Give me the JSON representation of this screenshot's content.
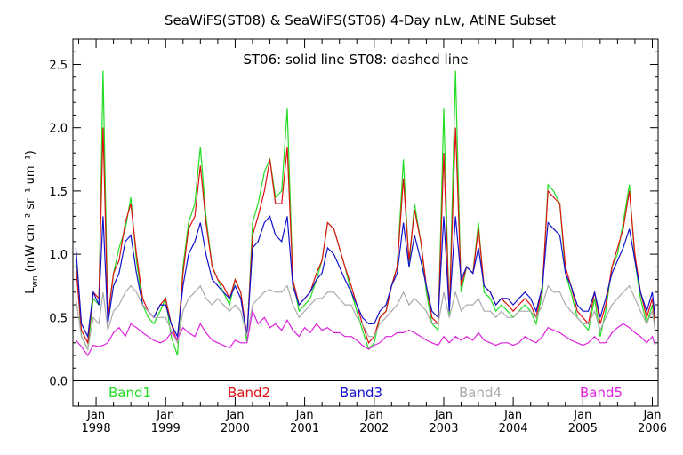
{
  "chart_data": {
    "type": "line",
    "title": "SeaWiFS(ST08) & SeaWiFS(ST06) 4-Day nLw, AtlNE Subset",
    "annotation": "ST06: solid line    ST08: dashed line",
    "xlabel": "",
    "ylabel_main": "L",
    "ylabel_sub": "wn",
    "ylabel_units": "(mW cm⁻² sr⁻¹ um⁻¹)",
    "x_range": [
      "1997-09-01",
      "2006-02-01"
    ],
    "ylim": [
      -0.2,
      2.7
    ],
    "y_ticks": [
      0.0,
      0.5,
      1.0,
      1.5,
      2.0,
      2.5
    ],
    "y_tick_labels": [
      "0.0",
      "0.5",
      "1.0",
      "1.5",
      "2.0",
      "2.5"
    ],
    "x_ticks": [
      {
        "month": "Jan",
        "year": "1998"
      },
      {
        "month": "Jan",
        "year": "1999"
      },
      {
        "month": "Jan",
        "year": "2000"
      },
      {
        "month": "Jan",
        "year": "2001"
      },
      {
        "month": "Jan",
        "year": "2002"
      },
      {
        "month": "Jan",
        "year": "2003"
      },
      {
        "month": "Jan",
        "year": "2004"
      },
      {
        "month": "Jan",
        "year": "2005"
      },
      {
        "month": "Jan",
        "year": "2006"
      }
    ],
    "zero_line": true,
    "x": [
      1997.71,
      1997.79,
      1997.88,
      1997.96,
      1998.04,
      1998.1,
      1998.17,
      1998.25,
      1998.33,
      1998.42,
      1998.5,
      1998.58,
      1998.67,
      1998.75,
      1998.83,
      1998.92,
      1999.0,
      1999.08,
      1999.17,
      1999.25,
      1999.33,
      1999.42,
      1999.5,
      1999.58,
      1999.67,
      1999.75,
      1999.83,
      1999.92,
      2000.0,
      2000.08,
      2000.17,
      2000.25,
      2000.33,
      2000.42,
      2000.5,
      2000.58,
      2000.67,
      2000.75,
      2000.83,
      2000.92,
      2001.0,
      2001.08,
      2001.17,
      2001.25,
      2001.33,
      2001.42,
      2001.5,
      2001.58,
      2001.67,
      2001.75,
      2001.83,
      2001.92,
      2002.0,
      2002.08,
      2002.17,
      2002.25,
      2002.33,
      2002.42,
      2002.5,
      2002.58,
      2002.67,
      2002.75,
      2002.83,
      2002.92,
      2003.0,
      2003.08,
      2003.17,
      2003.25,
      2003.33,
      2003.42,
      2003.5,
      2003.58,
      2003.67,
      2003.75,
      2003.83,
      2003.92,
      2004.0,
      2004.08,
      2004.17,
      2004.25,
      2004.33,
      2004.42,
      2004.5,
      2004.58,
      2004.67,
      2004.75,
      2004.83,
      2004.92,
      2005.0,
      2005.08,
      2005.17,
      2005.25,
      2005.33,
      2005.42,
      2005.5,
      2005.58,
      2005.67,
      2005.75,
      2005.83,
      2005.92,
      2006.0,
      2006.04
    ],
    "series": [
      {
        "name": "Band1",
        "color": "#22dd22",
        "style": "solid",
        "values": [
          0.95,
          0.35,
          0.25,
          0.65,
          0.6,
          2.45,
          0.5,
          0.85,
          1.05,
          1.2,
          1.45,
          0.95,
          0.6,
          0.5,
          0.45,
          0.55,
          0.65,
          0.35,
          0.2,
          0.9,
          1.25,
          1.4,
          1.85,
          1.3,
          0.9,
          0.8,
          0.7,
          0.6,
          0.8,
          0.7,
          0.3,
          1.25,
          1.4,
          1.65,
          1.75,
          1.45,
          1.5,
          2.15,
          0.8,
          0.55,
          0.6,
          0.65,
          0.8,
          0.95,
          1.25,
          1.2,
          1.05,
          0.9,
          0.7,
          0.55,
          0.4,
          0.25,
          0.3,
          0.5,
          0.55,
          0.75,
          0.9,
          1.75,
          0.9,
          1.4,
          1.1,
          0.7,
          0.45,
          0.4,
          2.15,
          0.5,
          2.45,
          0.7,
          0.9,
          0.85,
          1.25,
          0.7,
          0.65,
          0.55,
          0.6,
          0.55,
          0.5,
          0.55,
          0.6,
          0.55,
          0.45,
          0.7,
          1.55,
          1.5,
          1.4,
          0.85,
          0.7,
          0.5,
          0.45,
          0.4,
          0.65,
          0.35,
          0.55,
          0.9,
          1.0,
          1.25,
          1.55,
          0.95,
          0.65,
          0.45,
          0.6,
          0.4
        ]
      },
      {
        "name": "Band2",
        "color": "#dd1111",
        "style": "solid",
        "values": [
          0.9,
          0.4,
          0.3,
          0.7,
          0.65,
          2.0,
          0.5,
          0.85,
          0.95,
          1.25,
          1.4,
          1.0,
          0.65,
          0.55,
          0.5,
          0.6,
          0.65,
          0.45,
          0.3,
          0.85,
          1.2,
          1.3,
          1.7,
          1.25,
          0.9,
          0.8,
          0.75,
          0.65,
          0.8,
          0.7,
          0.35,
          1.15,
          1.3,
          1.5,
          1.75,
          1.4,
          1.4,
          1.85,
          0.8,
          0.6,
          0.65,
          0.7,
          0.85,
          0.95,
          1.25,
          1.2,
          1.05,
          0.9,
          0.75,
          0.6,
          0.45,
          0.3,
          0.35,
          0.5,
          0.55,
          0.75,
          0.9,
          1.6,
          0.95,
          1.35,
          1.1,
          0.75,
          0.5,
          0.45,
          1.8,
          0.55,
          2.0,
          0.75,
          0.9,
          0.85,
          1.2,
          0.75,
          0.7,
          0.6,
          0.65,
          0.6,
          0.55,
          0.6,
          0.65,
          0.6,
          0.5,
          0.75,
          1.5,
          1.45,
          1.4,
          0.9,
          0.75,
          0.55,
          0.5,
          0.45,
          0.7,
          0.45,
          0.6,
          0.9,
          1.05,
          1.2,
          1.5,
          1.0,
          0.7,
          0.5,
          0.65,
          0.45
        ]
      },
      {
        "name": "Band3",
        "color": "#1111cc",
        "style": "solid",
        "values": [
          1.05,
          0.45,
          0.35,
          0.7,
          0.6,
          1.3,
          0.45,
          0.75,
          0.85,
          1.1,
          1.15,
          0.85,
          0.6,
          0.55,
          0.5,
          0.6,
          0.6,
          0.45,
          0.35,
          0.75,
          1.0,
          1.1,
          1.25,
          1.0,
          0.8,
          0.75,
          0.7,
          0.65,
          0.75,
          0.65,
          0.35,
          1.05,
          1.1,
          1.25,
          1.3,
          1.15,
          1.1,
          1.3,
          0.75,
          0.6,
          0.65,
          0.7,
          0.8,
          0.85,
          1.05,
          1.0,
          0.9,
          0.8,
          0.7,
          0.6,
          0.5,
          0.45,
          0.45,
          0.55,
          0.6,
          0.75,
          0.85,
          1.25,
          0.9,
          1.15,
          0.95,
          0.75,
          0.55,
          0.5,
          1.3,
          0.55,
          1.3,
          0.8,
          0.9,
          0.85,
          1.05,
          0.75,
          0.7,
          0.6,
          0.65,
          0.65,
          0.6,
          0.65,
          0.7,
          0.65,
          0.55,
          0.75,
          1.25,
          1.2,
          1.15,
          0.85,
          0.75,
          0.6,
          0.55,
          0.55,
          0.7,
          0.5,
          0.65,
          0.85,
          0.95,
          1.05,
          1.2,
          0.95,
          0.7,
          0.55,
          0.7,
          0.5
        ]
      },
      {
        "name": "Band4",
        "color": "#aaaaaa",
        "style": "solid",
        "values": [
          0.65,
          0.35,
          0.25,
          0.5,
          0.45,
          0.7,
          0.4,
          0.55,
          0.6,
          0.7,
          0.75,
          0.7,
          0.6,
          0.55,
          0.5,
          0.5,
          0.5,
          0.4,
          0.3,
          0.55,
          0.65,
          0.7,
          0.75,
          0.65,
          0.6,
          0.65,
          0.6,
          0.55,
          0.6,
          0.55,
          0.35,
          0.6,
          0.65,
          0.7,
          0.72,
          0.7,
          0.7,
          0.75,
          0.6,
          0.5,
          0.55,
          0.6,
          0.65,
          0.65,
          0.7,
          0.7,
          0.65,
          0.6,
          0.6,
          0.5,
          0.45,
          0.35,
          0.35,
          0.45,
          0.5,
          0.55,
          0.6,
          0.7,
          0.6,
          0.65,
          0.6,
          0.55,
          0.45,
          0.45,
          0.7,
          0.5,
          0.7,
          0.55,
          0.6,
          0.6,
          0.65,
          0.55,
          0.55,
          0.5,
          0.55,
          0.5,
          0.5,
          0.55,
          0.55,
          0.55,
          0.5,
          0.6,
          0.75,
          0.7,
          0.7,
          0.6,
          0.55,
          0.5,
          0.45,
          0.45,
          0.55,
          0.4,
          0.5,
          0.6,
          0.65,
          0.7,
          0.75,
          0.65,
          0.55,
          0.45,
          0.55,
          0.4
        ]
      },
      {
        "name": "Band5",
        "color": "#dd22dd",
        "style": "solid",
        "values": [
          0.32,
          0.27,
          0.2,
          0.28,
          0.27,
          0.28,
          0.3,
          0.38,
          0.42,
          0.35,
          0.45,
          0.42,
          0.38,
          0.35,
          0.32,
          0.3,
          0.32,
          0.38,
          0.33,
          0.42,
          0.38,
          0.35,
          0.45,
          0.38,
          0.32,
          0.3,
          0.28,
          0.26,
          0.32,
          0.3,
          0.3,
          0.55,
          0.45,
          0.5,
          0.42,
          0.45,
          0.4,
          0.48,
          0.4,
          0.35,
          0.42,
          0.38,
          0.45,
          0.4,
          0.42,
          0.38,
          0.38,
          0.35,
          0.35,
          0.32,
          0.28,
          0.25,
          0.28,
          0.3,
          0.35,
          0.35,
          0.38,
          0.38,
          0.4,
          0.38,
          0.35,
          0.32,
          0.3,
          0.28,
          0.35,
          0.3,
          0.35,
          0.32,
          0.35,
          0.32,
          0.38,
          0.32,
          0.3,
          0.28,
          0.3,
          0.3,
          0.28,
          0.3,
          0.35,
          0.32,
          0.3,
          0.35,
          0.42,
          0.4,
          0.38,
          0.35,
          0.32,
          0.3,
          0.28,
          0.3,
          0.35,
          0.3,
          0.3,
          0.38,
          0.42,
          0.45,
          0.42,
          0.38,
          0.35,
          0.3,
          0.35,
          0.28
        ]
      }
    ],
    "legend": [
      {
        "label": "Band1",
        "color": "#22dd22"
      },
      {
        "label": "Band2",
        "color": "#dd1111"
      },
      {
        "label": "Band3",
        "color": "#1111cc"
      },
      {
        "label": "Band4",
        "color": "#aaaaaa"
      },
      {
        "label": "Band5",
        "color": "#dd22dd"
      }
    ]
  }
}
